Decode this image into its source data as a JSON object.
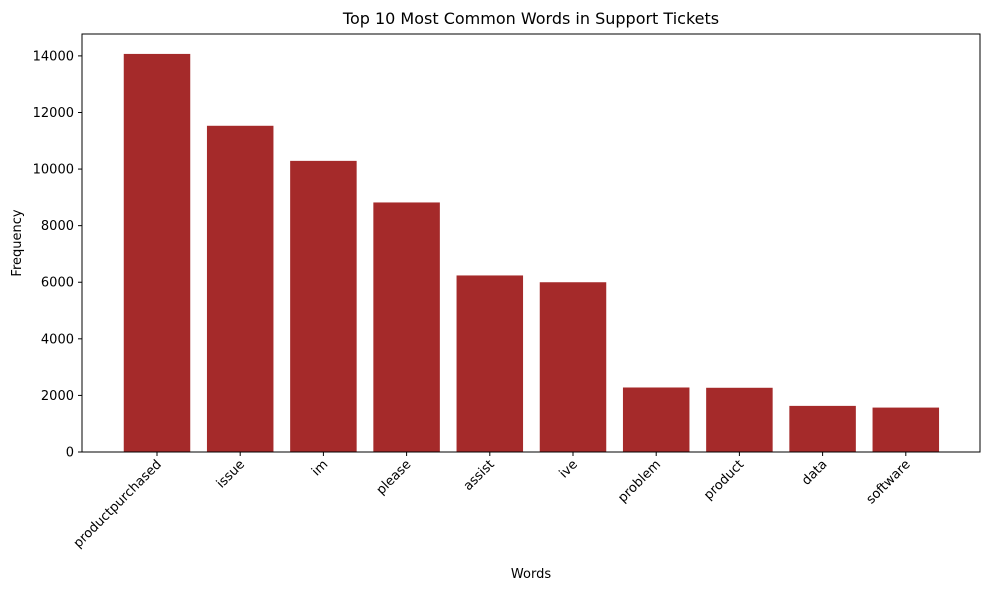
{
  "chart_data": {
    "type": "bar",
    "title": "Top 10 Most Common Words in Support Tickets",
    "xlabel": "Words",
    "ylabel": "Frequency",
    "categories": [
      "productpurchased",
      "issue",
      "im",
      "please",
      "assist",
      "ive",
      "problem",
      "product",
      "data",
      "software"
    ],
    "values": [
      14070,
      11530,
      10290,
      8820,
      6240,
      6000,
      2280,
      2270,
      1630,
      1570
    ],
    "ylim": [
      0,
      14774
    ],
    "yticks": [
      0,
      2000,
      4000,
      6000,
      8000,
      10000,
      12000,
      14000
    ],
    "ytick_labels": [
      "0",
      "2000",
      "4000",
      "6000",
      "8000",
      "10000",
      "12000",
      "14000"
    ],
    "bar_color": "#a52a2a",
    "grid": false,
    "legend": "none"
  }
}
